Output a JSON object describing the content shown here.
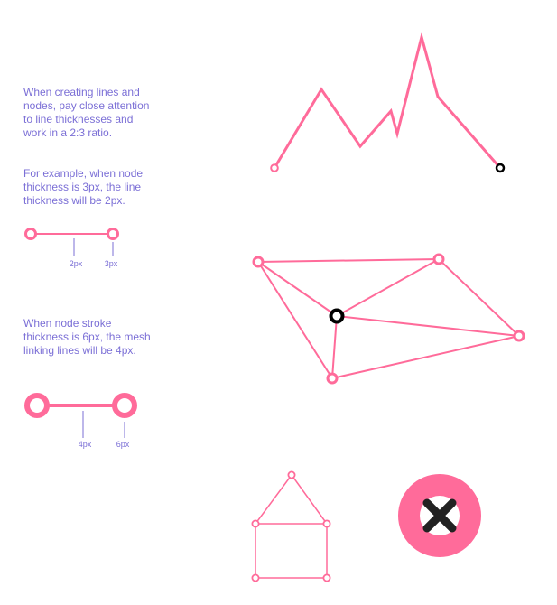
{
  "notes": {
    "ratio": "When creating lines and nodes, pay close attention to line thicknesses and work in a 2:3 ratio.",
    "example": "For example, when node thickness is 3px, the line thickness will be 2px.",
    "mesh": "When node stroke thickness is 6px, the mesh linking lines will be 4px."
  },
  "small_sample": {
    "line_label": "2px",
    "node_label": "3px"
  },
  "large_sample": {
    "line_label": "4px",
    "node_label": "6px"
  },
  "colors": {
    "accent": "#ff6b9a",
    "text": "#7b6fd6",
    "highlight": "#000000"
  },
  "icons": [
    "close-icon"
  ]
}
